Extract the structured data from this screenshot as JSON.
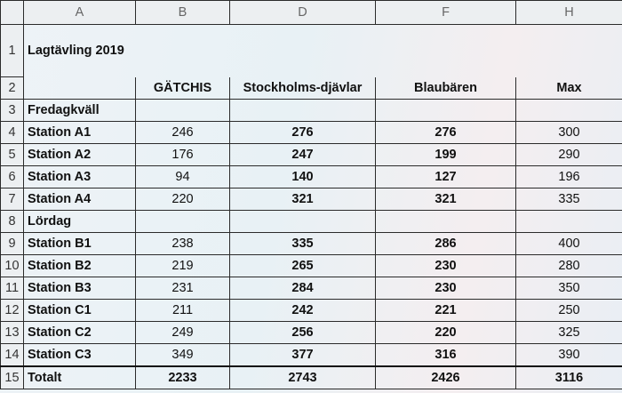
{
  "columns": [
    "A",
    "B",
    "D",
    "F",
    "H"
  ],
  "title": "Lagtävling 2019",
  "header": {
    "row": "2",
    "teams": [
      "GÄTCHIS",
      "Stockholms-djävlar",
      "Blaubären",
      "Max"
    ]
  },
  "rows": [
    {
      "num": "3",
      "label": "Fredagkväll",
      "section": true,
      "values": [
        "",
        "",
        "",
        ""
      ]
    },
    {
      "num": "4",
      "label": "Station A1",
      "values": [
        "246",
        "276",
        "276",
        "300"
      ]
    },
    {
      "num": "5",
      "label": "Station A2",
      "values": [
        "176",
        "247",
        "199",
        "290"
      ]
    },
    {
      "num": "6",
      "label": "Station A3",
      "values": [
        "94",
        "140",
        "127",
        "196"
      ]
    },
    {
      "num": "7",
      "label": "Station A4",
      "values": [
        "220",
        "321",
        "321",
        "335"
      ]
    },
    {
      "num": "8",
      "label": "Lördag",
      "section": true,
      "values": [
        "",
        "",
        "",
        ""
      ]
    },
    {
      "num": "9",
      "label": "Station B1",
      "values": [
        "238",
        "335",
        "286",
        "400"
      ]
    },
    {
      "num": "10",
      "label": "Station B2",
      "values": [
        "219",
        "265",
        "230",
        "280"
      ]
    },
    {
      "num": "11",
      "label": "Station B3",
      "values": [
        "231",
        "284",
        "230",
        "350"
      ]
    },
    {
      "num": "12",
      "label": "Station C1",
      "values": [
        "211",
        "242",
        "221",
        "250"
      ]
    },
    {
      "num": "13",
      "label": "Station C2",
      "values": [
        "249",
        "256",
        "220",
        "325"
      ]
    },
    {
      "num": "14",
      "label": "Station C3",
      "values": [
        "349",
        "377",
        "316",
        "390"
      ]
    },
    {
      "num": "15",
      "label": "Totalt",
      "total": true,
      "values": [
        "2233",
        "2743",
        "2426",
        "3116"
      ]
    }
  ],
  "title_row_num": "1"
}
